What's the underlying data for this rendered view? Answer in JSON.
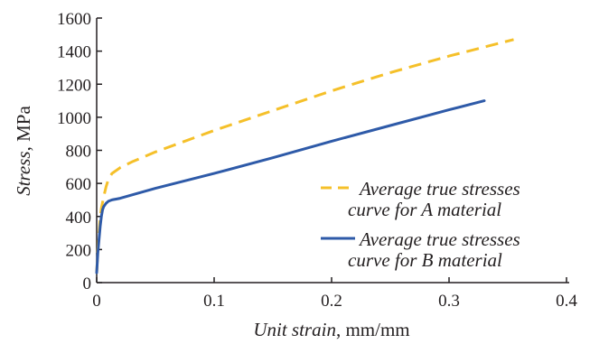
{
  "chart_data": {
    "type": "line",
    "xlabel": {
      "italic": "Unit strain",
      "rest": ", mm/mm"
    },
    "ylabel": {
      "italic": "Stress",
      "rest": ", MPa"
    },
    "xlim": [
      0,
      0.4
    ],
    "ylim": [
      0,
      1600
    ],
    "x_ticks": [
      0,
      0.1,
      0.2,
      0.3,
      0.4
    ],
    "x_tick_labels": [
      "0",
      "0.1",
      "0.2",
      "0.3",
      "0.4"
    ],
    "y_ticks": [
      0,
      200,
      400,
      600,
      800,
      1000,
      1200,
      1400,
      1600
    ],
    "y_tick_labels": [
      "0",
      "200",
      "400",
      "600",
      "800",
      "1000",
      "1200",
      "1400",
      "1600"
    ],
    "grid": false,
    "legend_position": "center-right",
    "series": [
      {
        "legend_lines": [
          "Average true stresses",
          "curve for A material"
        ],
        "color": "#f5c02a",
        "style": "dashed",
        "x": [
          0,
          0.001,
          0.002,
          0.003,
          0.004,
          0.006,
          0.008,
          0.01,
          0.013,
          0.017,
          0.02,
          0.03,
          0.05,
          0.1,
          0.15,
          0.2,
          0.25,
          0.3,
          0.355
        ],
        "y": [
          60,
          200,
          300,
          390,
          450,
          520,
          580,
          625,
          660,
          680,
          695,
          730,
          790,
          920,
          1040,
          1160,
          1270,
          1370,
          1470
        ]
      },
      {
        "legend_lines": [
          "Average true stresses",
          "curve for B material"
        ],
        "color": "#2e5aa8",
        "style": "solid",
        "x": [
          0,
          0.001,
          0.002,
          0.003,
          0.004,
          0.005,
          0.006,
          0.008,
          0.01,
          0.013,
          0.02,
          0.05,
          0.1,
          0.15,
          0.2,
          0.25,
          0.3,
          0.33
        ],
        "y": [
          60,
          180,
          260,
          340,
          400,
          440,
          460,
          480,
          492,
          500,
          510,
          570,
          660,
          755,
          855,
          950,
          1045,
          1100
        ]
      }
    ]
  }
}
